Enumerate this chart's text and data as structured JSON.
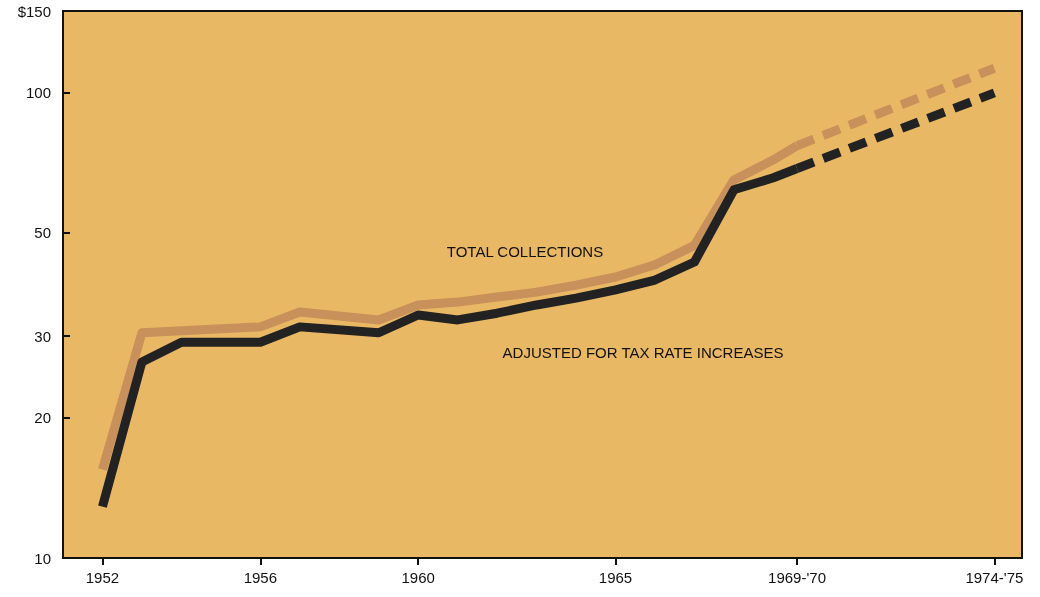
{
  "chart_data": {
    "type": "line",
    "log": "y",
    "grid": false,
    "marker": "none",
    "xlim": [
      1951,
      1975.3
    ],
    "ylim": [
      10,
      150
    ],
    "xticks": [
      1952,
      1956,
      1960,
      1965,
      {
        "value": 1969.6,
        "label": "1969-'70"
      },
      {
        "value": 1974.6,
        "label": "1974-'75"
      }
    ],
    "yticks": [
      10,
      20,
      30,
      50,
      100,
      {
        "value": 150,
        "label": "$150"
      }
    ],
    "series": [
      {
        "color": "#c8905a",
        "line_style": "solid",
        "x": [
          1952,
          1953,
          1956,
          1957,
          1959,
          1960,
          1961,
          1962,
          1963,
          1964,
          1965,
          1966,
          1967,
          1968,
          1969,
          1969.6
        ],
        "values": [
          15.5,
          30.5,
          31.4,
          33.8,
          32.5,
          35.0,
          35.5,
          36.4,
          37.3,
          38.6,
          40.2,
          42.7,
          47,
          65,
          71.8,
          77
        ]
      },
      {
        "color": "#c8905a",
        "line_style": "dashed",
        "x": [
          1969.6,
          1974.6
        ],
        "values": [
          77,
          113
        ]
      },
      {
        "color": "#222222",
        "line_style": "solid",
        "x": [
          1952,
          1953,
          1954,
          1956,
          1957,
          1959,
          1960,
          1961,
          1962,
          1963,
          1964,
          1965,
          1966,
          1967,
          1968,
          1969,
          1969.6
        ],
        "values": [
          12.9,
          26.4,
          29.1,
          29.1,
          31.4,
          30.5,
          33.3,
          32.5,
          33.6,
          35.0,
          36.2,
          37.7,
          39.6,
          43.3,
          61.9,
          65.7,
          68.8
        ]
      },
      {
        "color": "#222222",
        "line_style": "dashed",
        "x": [
          1969.6,
          1974.6
        ],
        "values": [
          68.8,
          100
        ]
      }
    ],
    "annotations": [
      "TOTAL COLLECTIONS",
      "ADJUSTED FOR TAX RATE INCREASES"
    ]
  }
}
